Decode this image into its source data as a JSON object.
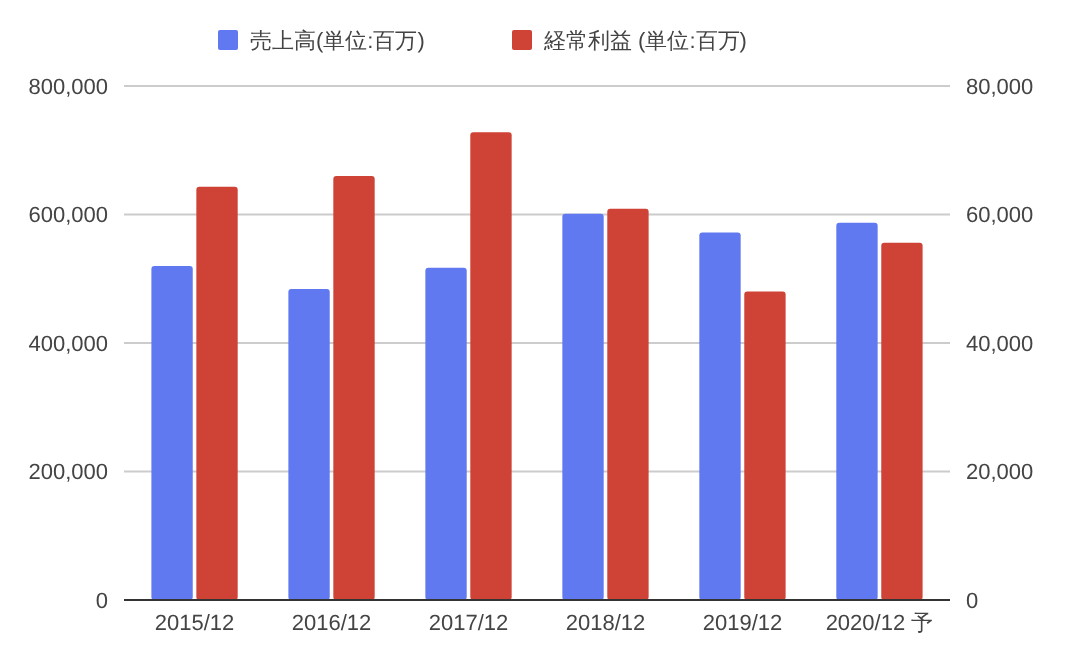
{
  "chart_data": {
    "type": "bar",
    "categories": [
      "2015/12",
      "2016/12",
      "2017/12",
      "2018/12",
      "2019/12",
      "2020/12 予"
    ],
    "series": [
      {
        "name": "売上高(単位:百万)",
        "color": "#6078f0",
        "values": [
          520000,
          484000,
          517000,
          601000,
          572000,
          587000
        ]
      },
      {
        "name": "経常利益 (単位:百万)",
        "color": "#cf4236",
        "axis": "y2",
        "values": [
          64300,
          66000,
          72800,
          60900,
          48000,
          55600
        ]
      }
    ],
    "ylim": [
      0,
      800000
    ],
    "yticks": [
      {
        "value": 0,
        "label": "0"
      },
      {
        "value": 200000,
        "label": "200,000"
      },
      {
        "value": 400000,
        "label": "400,000"
      },
      {
        "value": 600000,
        "label": "600,000"
      },
      {
        "value": 800000,
        "label": "800,000"
      }
    ],
    "y2lim": [
      0,
      80000
    ],
    "y2ticks": [
      {
        "value": 0,
        "label": "0"
      },
      {
        "value": 20000,
        "label": "20,000"
      },
      {
        "value": 40000,
        "label": "40,000"
      },
      {
        "value": 60000,
        "label": "60,000"
      },
      {
        "value": 80000,
        "label": "80,000"
      }
    ],
    "grid": "y",
    "legend": "top"
  }
}
